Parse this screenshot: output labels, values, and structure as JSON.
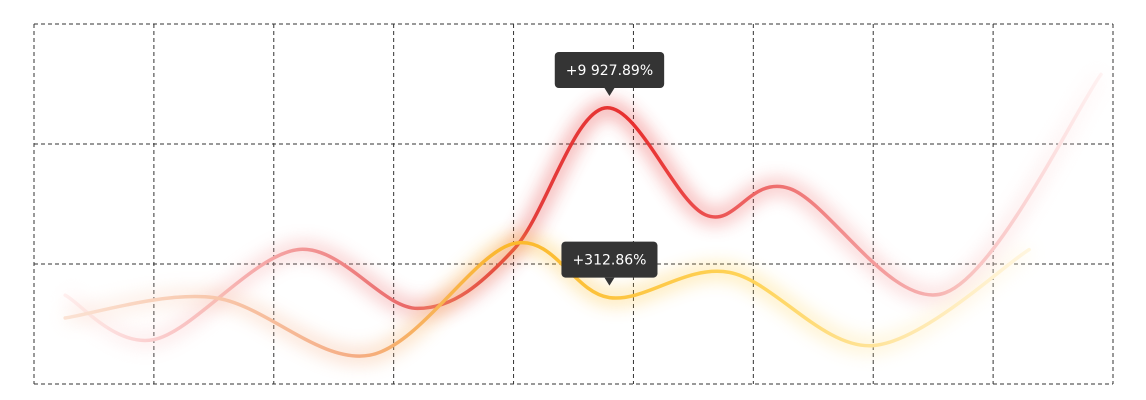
{
  "chart_data": {
    "type": "line",
    "xlim": [
      0,
      9
    ],
    "ylim": [
      0,
      3
    ],
    "xticks": [
      0,
      1,
      2,
      3,
      4,
      5,
      6,
      7,
      8,
      9
    ],
    "yticks": [
      0,
      1,
      2,
      3
    ],
    "grid": true,
    "series": [
      {
        "color": "#e8302f",
        "x": [
          0.26,
          1.0,
          2.2,
          3.2,
          4.0,
          4.76,
          5.6,
          6.3,
          7.6,
          8.9
        ],
        "values": [
          0.74,
          0.37,
          1.12,
          0.63,
          1.12,
          2.3,
          1.41,
          1.63,
          0.76,
          2.58
        ]
      },
      {
        "color": "#fbb82b",
        "x": [
          0.26,
          1.5,
          2.8,
          4.0,
          4.8,
          5.8,
          7.0,
          8.3
        ],
        "values": [
          0.55,
          0.72,
          0.24,
          1.17,
          0.72,
          0.93,
          0.32,
          1.12
        ]
      }
    ],
    "annotations": [
      {
        "text": "+9 927.89%",
        "x": 4.8,
        "y": 2.3
      },
      {
        "text": "+312.86%",
        "x": 4.8,
        "y": 0.72
      }
    ]
  }
}
